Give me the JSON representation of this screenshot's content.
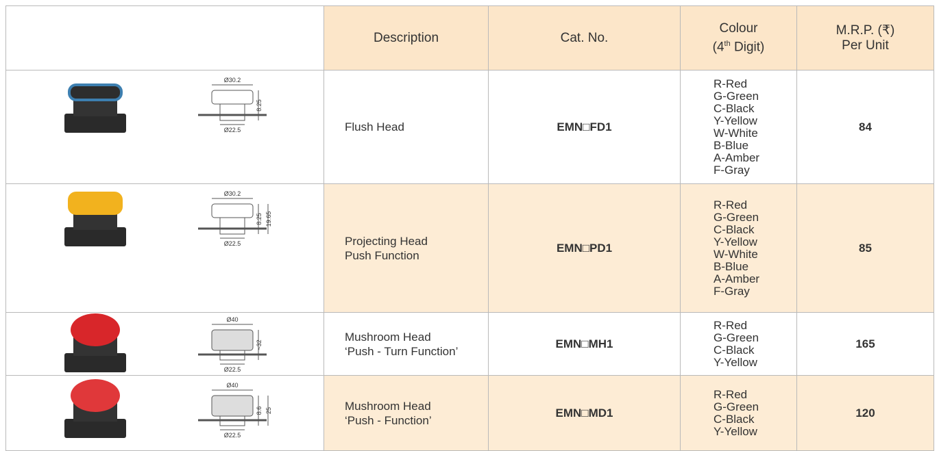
{
  "header": {
    "description": "Description",
    "cat_no": "Cat. No.",
    "colour": {
      "line1": "Colour",
      "pre": "(4",
      "sup": "th",
      "post": "Digit)"
    },
    "mrp": [
      "M.R.P. (₹)",
      "Per Unit"
    ]
  },
  "rows": [
    {
      "description": [
        "Flush Head"
      ],
      "cat_no": "EMN□FD1",
      "colours": [
        "R-Red",
        "G-Green",
        "C-Black",
        "Y-Yellow",
        "W-White",
        "B-Blue",
        "A-Amber",
        "F-Gray"
      ],
      "price": 84,
      "drawing": [
        "Ø30.2",
        "8.25",
        "Ø22.5"
      ]
    },
    {
      "description": [
        "Projecting Head",
        "Push Function"
      ],
      "cat_no": "EMN□PD1",
      "colours": [
        "R-Red",
        "G-Green",
        "C-Black",
        "Y-Yellow",
        "W-White",
        "B-Blue",
        "A-Amber",
        "F-Gray"
      ],
      "price": 85,
      "drawing": [
        "Ø30.2",
        "8.25",
        "19.65",
        "Ø22.5"
      ]
    },
    {
      "description": [
        "Mushroom Head",
        "‘Push - Turn Function’"
      ],
      "cat_no": "EMN□MH1",
      "colours": [
        "R-Red",
        "G-Green",
        "C-Black",
        "Y-Yellow"
      ],
      "price": 165,
      "drawing": [
        "Ø40",
        "~32",
        "Ø22.5"
      ]
    },
    {
      "description": [
        "Mushroom Head",
        "‘Push - Function’"
      ],
      "cat_no": "EMN□MD1",
      "colours": [
        "R-Red",
        "G-Green",
        "C-Black",
        "Y-Yellow"
      ],
      "price": 120,
      "drawing": [
        "Ø40",
        "8.6",
        "25",
        "Ø22.5"
      ]
    }
  ]
}
